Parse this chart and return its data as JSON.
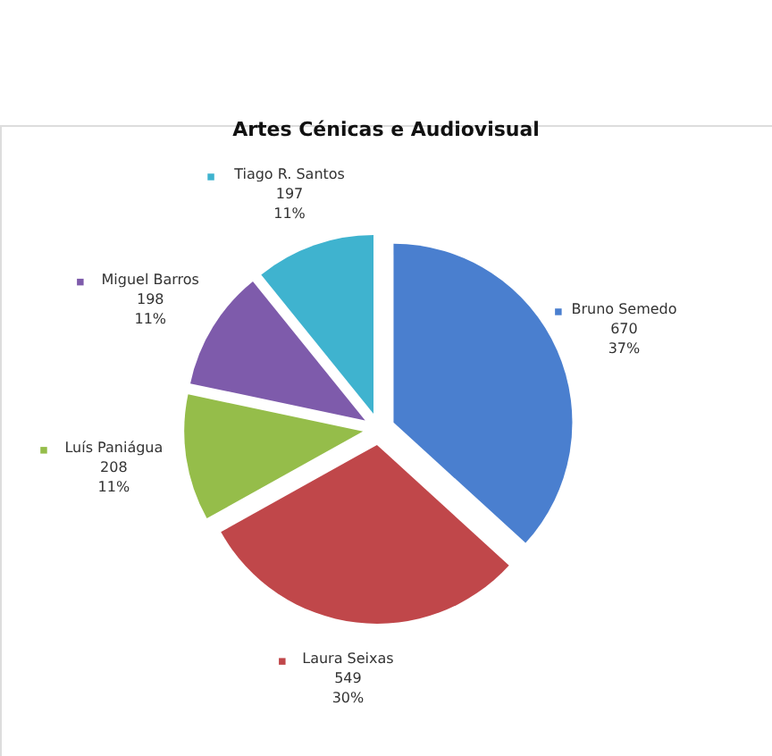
{
  "chart_data": {
    "type": "pie",
    "title": "Artes Cénicas e Audiovisual",
    "categories": [
      "Bruno Semedo",
      "Laura Seixas",
      "Luís Paniágua",
      "Miguel Barros",
      "Tiago R. Santos"
    ],
    "values": [
      670,
      549,
      208,
      198,
      197
    ],
    "colors": [
      "#4a7fcf",
      "#c0474a",
      "#95bd4a",
      "#7e5bab",
      "#3fb3cf"
    ],
    "value_labels": [
      "670",
      "549",
      "208",
      "198",
      "197"
    ],
    "annotations": [
      "37%",
      "30%",
      "11%",
      "11%",
      "11%"
    ],
    "legend": true
  }
}
